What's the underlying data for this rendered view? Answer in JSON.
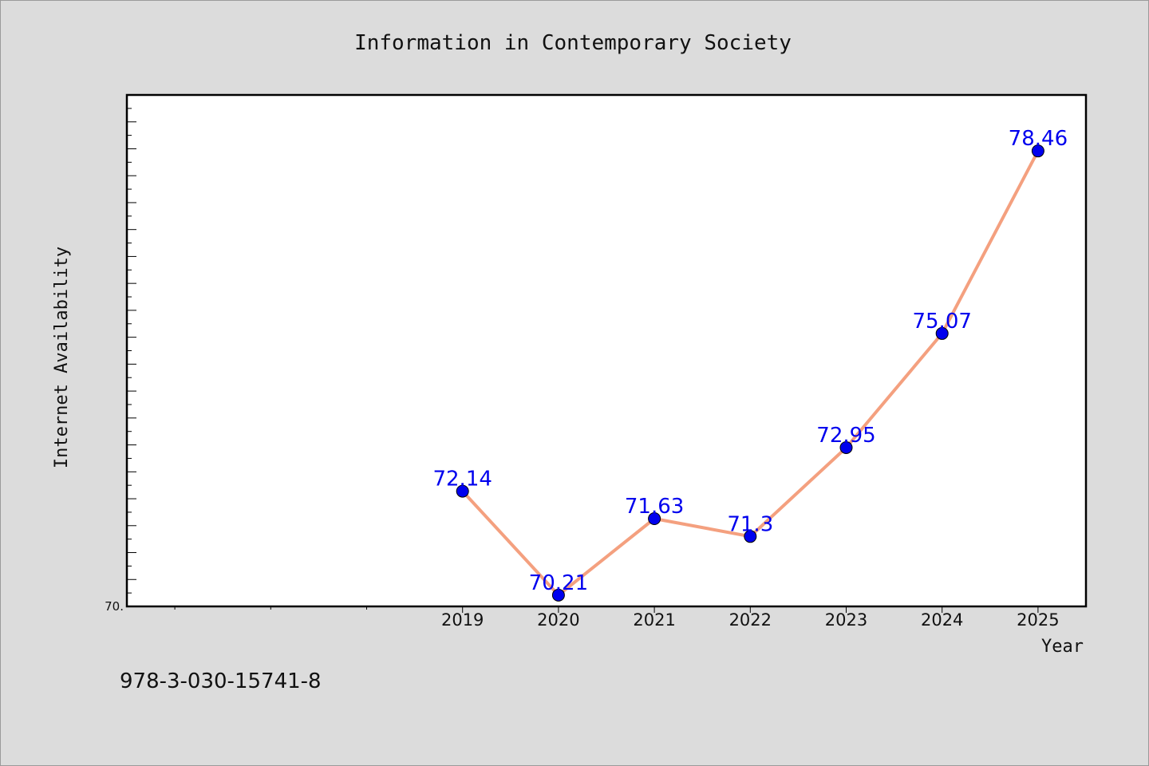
{
  "chart_data": {
    "type": "line",
    "title": "Information in Contemporary Society",
    "xlabel": "Year",
    "ylabel": "Internet Availability",
    "categories": [
      "2019",
      "2020",
      "2021",
      "2022",
      "2023",
      "2024",
      "2025"
    ],
    "x": [
      2019,
      2020,
      2021,
      2022,
      2023,
      2024,
      2025
    ],
    "values": [
      72.14,
      70.21,
      71.63,
      71.3,
      72.95,
      75.07,
      78.46
    ],
    "data_labels": [
      "72.14",
      "70.21",
      "71.63",
      "71.3",
      "72.95",
      "75.07",
      "78.46"
    ],
    "xlim": [
      2015.5,
      2025.5
    ],
    "ylim": [
      70.0,
      79.5
    ],
    "y_tick_labels": [
      {
        "value": 70.0,
        "label": "70."
      }
    ],
    "grid": false,
    "line_color": "#f4a07f",
    "marker_color": "#0000ee",
    "label_color": "#0000ee"
  },
  "footnote": "978-3-030-15741-8"
}
